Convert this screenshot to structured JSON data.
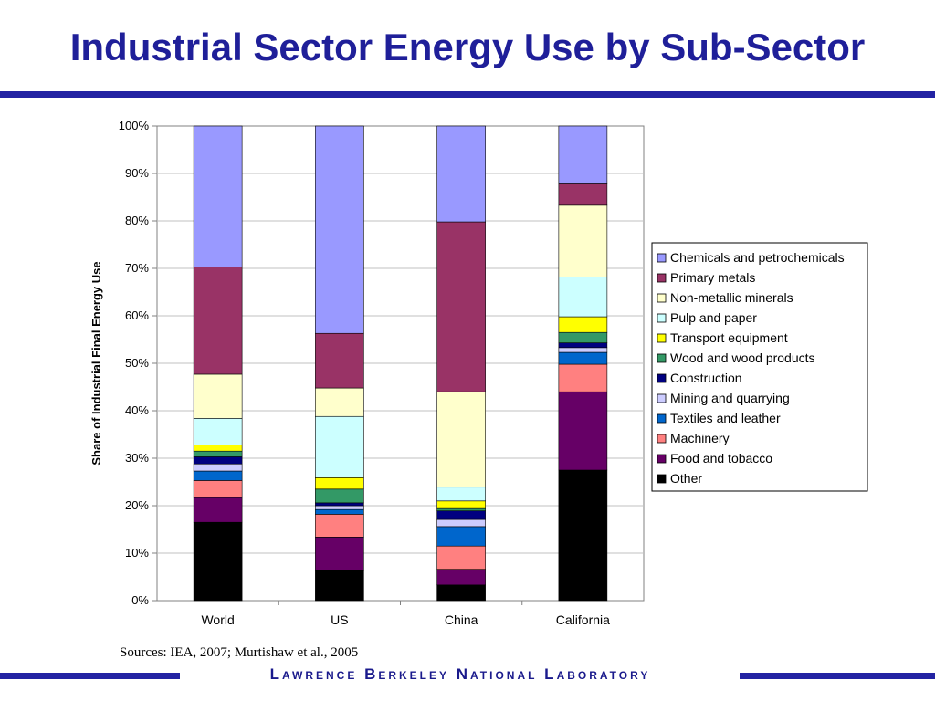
{
  "slide": {
    "title": "Industrial Sector Energy Use by Sub-Sector",
    "sources": "Sources: IEA, 2007; Murtishaw et al., 2005",
    "footer": "Lawrence Berkeley National Laboratory",
    "colors": {
      "title": "#1f1f99",
      "rule": "#2323a3"
    }
  },
  "chart_data": {
    "type": "bar",
    "stacked": true,
    "normalized": true,
    "title": "",
    "xlabel": "",
    "ylabel": "Share of Industrial Final Energy Use",
    "ylim": [
      0,
      100
    ],
    "yticks": [
      "0%",
      "10%",
      "20%",
      "30%",
      "40%",
      "50%",
      "60%",
      "70%",
      "80%",
      "90%",
      "100%"
    ],
    "grid": true,
    "legend_position": "right",
    "categories": [
      "World",
      "US",
      "China",
      "California"
    ],
    "series": [
      {
        "name": "Other",
        "color": "#000000",
        "values": [
          16.5,
          6.3,
          3.3,
          27.5
        ]
      },
      {
        "name": "Food and tobacco",
        "color": "#660066",
        "values": [
          5.2,
          7.1,
          3.3,
          16.5
        ]
      },
      {
        "name": "Machinery",
        "color": "#ff8080",
        "values": [
          3.6,
          4.8,
          4.9,
          5.8
        ]
      },
      {
        "name": "Textiles and leather",
        "color": "#0066cc",
        "values": [
          2.0,
          1.0,
          4.1,
          2.5
        ]
      },
      {
        "name": "Mining and quarrying",
        "color": "#ccccff",
        "values": [
          1.5,
          0.8,
          1.5,
          1.0
        ]
      },
      {
        "name": "Construction",
        "color": "#000080",
        "values": [
          1.5,
          0.6,
          1.8,
          1.0
        ]
      },
      {
        "name": "Wood and wood products",
        "color": "#339966",
        "values": [
          1.2,
          2.9,
          0.5,
          2.2
        ]
      },
      {
        "name": "Transport equipment",
        "color": "#ffff00",
        "values": [
          1.3,
          2.4,
          1.6,
          3.3
        ]
      },
      {
        "name": "Pulp and paper",
        "color": "#ccffff",
        "values": [
          5.6,
          12.9,
          2.9,
          8.4
        ]
      },
      {
        "name": "Non-metallic minerals",
        "color": "#ffffcc",
        "values": [
          9.3,
          6.0,
          20.1,
          15.1
        ]
      },
      {
        "name": "Primary metals",
        "color": "#993366",
        "values": [
          22.6,
          11.5,
          35.8,
          4.5
        ]
      },
      {
        "name": "Chemicals and petrochemicals",
        "color": "#9999ff",
        "values": [
          29.7,
          43.7,
          20.2,
          12.2
        ]
      }
    ],
    "legend_order": [
      "Chemicals and petrochemicals",
      "Primary metals",
      "Non-metallic minerals",
      "Pulp and paper",
      "Transport equipment",
      "Wood and wood products",
      "Construction",
      "Mining and quarrying",
      "Textiles and leather",
      "Machinery",
      "Food and tobacco",
      "Other"
    ]
  }
}
